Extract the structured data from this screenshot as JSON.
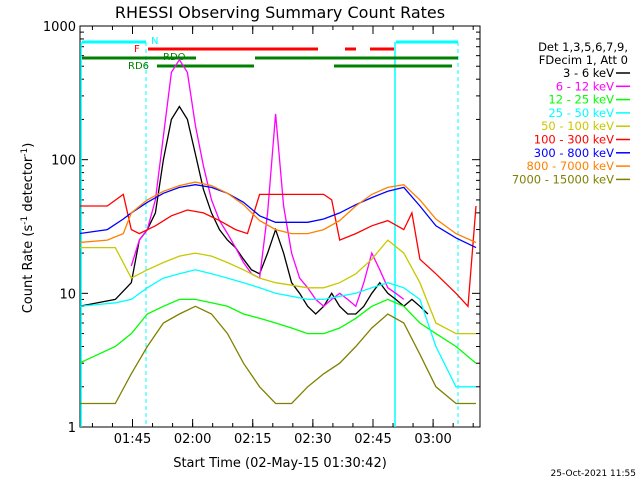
{
  "chart_data": {
    "type": "line",
    "title": "RHESSI Observing Summary Count Rates",
    "xlabel": "Start Time (02-May-15 01:30:42)",
    "ylabel_main": "Count Rate (s",
    "ylabel_sup1": "-1",
    "ylabel_mid": " detector",
    "ylabel_sup2": "-1",
    "ylabel_end": ")",
    "yscale": "log",
    "ylim": [
      1,
      1000
    ],
    "xlim_minutes": [
      1.2,
      101
    ],
    "x_ticks": [
      "01:45",
      "02:00",
      "02:15",
      "02:30",
      "02:45",
      "03:00"
    ],
    "y_ticks": [
      "1",
      "10",
      "100",
      "1000"
    ],
    "legend_header": [
      "Det 1,3,5,6,7,9,",
      "FDecim 1, Att 0"
    ],
    "timestamp": "25-Oct-2021 11:55",
    "flags": {
      "N": {
        "label": "N",
        "color": "#00ffff"
      },
      "F": {
        "label": "F",
        "color": "#ff0000"
      },
      "RDO": {
        "label": "RDO",
        "color": "#008000"
      },
      "RD6": {
        "label": "RD6",
        "color": "#008000"
      }
    },
    "series": [
      {
        "name": "3 - 6 keV",
        "color": "#000000",
        "x": [
          1,
          10,
          14,
          16,
          18,
          20,
          22,
          24,
          26,
          28,
          30,
          32,
          34,
          36,
          38,
          40,
          42,
          44,
          46,
          48,
          50,
          52,
          54,
          56,
          58,
          60,
          62,
          64,
          66,
          68,
          70,
          72,
          74,
          76,
          78,
          80,
          82,
          84,
          86,
          88
        ],
        "y": [
          8,
          9,
          12,
          25,
          30,
          40,
          100,
          200,
          250,
          200,
          110,
          60,
          40,
          30,
          25,
          22,
          18,
          15,
          14,
          20,
          30,
          20,
          12,
          10,
          8,
          7,
          8,
          10,
          8,
          7,
          7,
          8,
          10,
          12,
          10,
          9,
          8,
          9,
          8,
          7
        ]
      },
      {
        "name": "6 - 12 keV",
        "color": "#ff00ff",
        "x": [
          14,
          16,
          18,
          20,
          22,
          24,
          26,
          28,
          30,
          32,
          34,
          36,
          38,
          40,
          42,
          44,
          46,
          48,
          50,
          52,
          54,
          56,
          58,
          60,
          62,
          64,
          66,
          68,
          70,
          72,
          74,
          76,
          78,
          80,
          82
        ],
        "y": [
          16,
          25,
          30,
          50,
          150,
          450,
          560,
          450,
          180,
          90,
          50,
          35,
          28,
          22,
          17,
          14,
          13,
          40,
          220,
          45,
          20,
          13,
          11,
          9,
          8,
          9,
          10,
          9,
          8,
          12,
          20,
          15,
          11,
          10,
          9
        ]
      },
      {
        "name": "12 - 25 keV",
        "color": "#00ff00",
        "x": [
          1,
          10,
          14,
          18,
          22,
          26,
          30,
          34,
          38,
          42,
          46,
          50,
          54,
          58,
          62,
          66,
          70,
          74,
          78,
          82,
          86,
          90,
          95,
          100
        ],
        "y": [
          3,
          4,
          5,
          7,
          8,
          9,
          9,
          8.5,
          8,
          7,
          6.5,
          6,
          5.5,
          5,
          5,
          5.5,
          6.5,
          8,
          9,
          8,
          6,
          5,
          4,
          3
        ]
      },
      {
        "name": "25 - 50 keV",
        "color": "#00ffff",
        "x": [
          1,
          10,
          14,
          18,
          22,
          26,
          30,
          34,
          38,
          42,
          46,
          50,
          54,
          58,
          62,
          66,
          70,
          74,
          78,
          82,
          86,
          90,
          95,
          100
        ],
        "y": [
          8,
          8.5,
          9,
          11,
          13,
          14,
          15,
          14,
          13,
          12,
          11,
          10,
          9.5,
          9,
          9,
          9.5,
          10,
          11,
          12,
          11,
          9,
          4,
          2,
          2
        ]
      },
      {
        "name": "50 - 100 keV",
        "color": "#c8c800",
        "x": [
          1,
          10,
          14,
          18,
          22,
          26,
          30,
          34,
          38,
          42,
          46,
          50,
          54,
          58,
          62,
          66,
          70,
          74,
          78,
          82,
          86,
          90,
          95,
          100
        ],
        "y": [
          22,
          22,
          13,
          15,
          17,
          19,
          20,
          19,
          17,
          15,
          13,
          12,
          11.5,
          11,
          11,
          12,
          14,
          18,
          25,
          20,
          12,
          6,
          5,
          5
        ]
      },
      {
        "name": "100 - 300 keV",
        "color": "#ff0000",
        "x": [
          1,
          8,
          12,
          14,
          16,
          20,
          24,
          28,
          32,
          36,
          40,
          43,
          46,
          50,
          54,
          58,
          62,
          64,
          66,
          70,
          74,
          78,
          82,
          84,
          86,
          90,
          95,
          98,
          100
        ],
        "y": [
          45,
          45,
          55,
          30,
          28,
          32,
          38,
          42,
          40,
          35,
          30,
          28,
          55,
          55,
          55,
          55,
          55,
          50,
          25,
          28,
          32,
          35,
          30,
          40,
          18,
          14,
          10,
          8,
          45
        ]
      },
      {
        "name": "300 - 800 keV",
        "color": "#0000ff",
        "x": [
          1,
          8,
          12,
          14,
          18,
          22,
          26,
          30,
          34,
          38,
          42,
          46,
          50,
          54,
          58,
          62,
          66,
          70,
          74,
          78,
          82,
          86,
          90,
          95,
          100
        ],
        "y": [
          28,
          30,
          36,
          40,
          48,
          56,
          62,
          65,
          62,
          56,
          48,
          38,
          34,
          34,
          34,
          36,
          40,
          46,
          52,
          58,
          62,
          45,
          32,
          26,
          22
        ]
      },
      {
        "name": "800 - 7000 keV",
        "color": "#ff8000",
        "x": [
          1,
          8,
          12,
          14,
          18,
          22,
          26,
          30,
          34,
          38,
          42,
          46,
          50,
          54,
          58,
          62,
          66,
          70,
          74,
          78,
          82,
          86,
          90,
          95,
          100
        ],
        "y": [
          24,
          25,
          28,
          40,
          50,
          58,
          64,
          68,
          64,
          56,
          46,
          35,
          30,
          28,
          28,
          30,
          35,
          45,
          55,
          62,
          65,
          50,
          36,
          28,
          24
        ]
      },
      {
        "name": "7000 - 15000 keV",
        "color": "#808000",
        "x": [
          1,
          10,
          14,
          18,
          22,
          26,
          30,
          34,
          38,
          42,
          46,
          50,
          54,
          58,
          62,
          66,
          70,
          74,
          78,
          82,
          86,
          90,
          95,
          100
        ],
        "y": [
          1.5,
          1.5,
          2.5,
          4,
          6,
          7,
          8,
          7,
          5,
          3,
          2,
          1.5,
          1.5,
          2,
          2.5,
          3,
          4,
          5.5,
          7,
          6,
          3.5,
          2,
          1.5,
          1.5
        ]
      }
    ]
  }
}
